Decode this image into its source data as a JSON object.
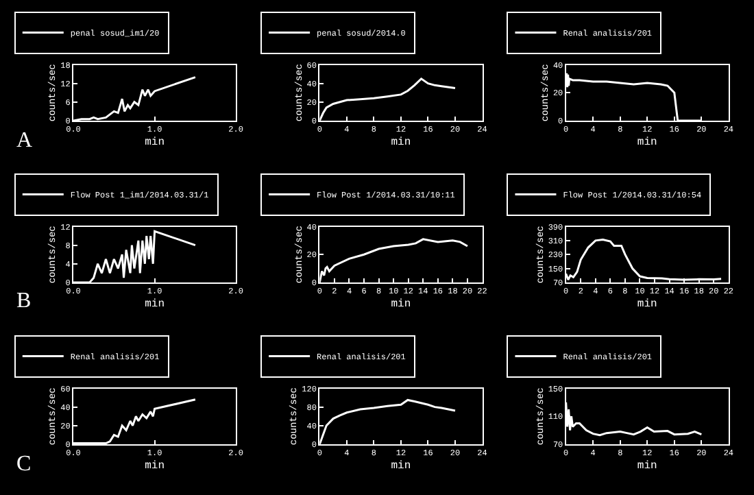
{
  "chart_data": [
    {
      "type": "line",
      "xlabel": "min",
      "ylabel": "counts/sec",
      "legend": "top",
      "grid": false,
      "annotations": [
        "A"
      ],
      "xlim": [
        0,
        2
      ],
      "xticks": [
        {
          "value": 0,
          "label": "0.0"
        },
        {
          "value": 1,
          "label": "1.0"
        },
        {
          "value": 2,
          "label": "2.0"
        }
      ],
      "ylim": [
        0,
        18
      ],
      "yticks": [
        0,
        6,
        12,
        18
      ],
      "x": [
        0,
        0.1,
        0.2,
        0.25,
        0.3,
        0.4,
        0.45,
        0.5,
        0.55,
        0.6,
        0.63,
        0.67,
        0.7,
        0.75,
        0.8,
        0.85,
        0.88,
        0.92,
        0.95,
        1.0,
        1.5
      ],
      "series": [
        {
          "name": "penal sosud_im1/20",
          "color": "#ffffff",
          "values": [
            0,
            0.5,
            0.5,
            1,
            0.5,
            1,
            2,
            3,
            2.5,
            7,
            3,
            5,
            4,
            6,
            5,
            10,
            8,
            10,
            8,
            9.5,
            14
          ]
        }
      ]
    },
    {
      "type": "line",
      "xlabel": "min",
      "ylabel": "counts/sec",
      "legend": "top",
      "grid": false,
      "xlim": [
        0,
        24
      ],
      "xticks": [
        0,
        4,
        8,
        12,
        16,
        20,
        24
      ],
      "ylim": [
        0,
        60
      ],
      "yticks": [
        0,
        20,
        40,
        60
      ],
      "x": [
        0,
        0.5,
        1,
        2,
        3,
        4,
        6,
        8,
        10,
        12,
        13,
        14,
        15,
        16,
        17,
        18,
        20
      ],
      "series": [
        {
          "name": "penal sosud/2014.0",
          "color": "#ffffff",
          "values": [
            0,
            8,
            14,
            18,
            20,
            22,
            23,
            24,
            26,
            28,
            32,
            38,
            45,
            40,
            38,
            37,
            35
          ]
        }
      ]
    },
    {
      "type": "line",
      "xlabel": "min",
      "ylabel": "counts/sec",
      "legend": "top",
      "grid": false,
      "xlim": [
        0,
        24
      ],
      "xticks": [
        0,
        4,
        8,
        12,
        16,
        20,
        24
      ],
      "ylim": [
        0,
        40
      ],
      "yticks": [
        0,
        20,
        40
      ],
      "x": [
        0,
        0.1,
        0.2,
        0.3,
        0.4,
        0.5,
        1,
        2,
        4,
        6,
        8,
        10,
        12,
        14,
        15,
        16,
        16.5,
        17,
        18,
        20
      ],
      "series": [
        {
          "name": "Renal analisis/201",
          "color": "#ffffff",
          "values": [
            26,
            34,
            24,
            33,
            25,
            30,
            29,
            29,
            28,
            28,
            27,
            26,
            27,
            26,
            25,
            20,
            0,
            0,
            0,
            0
          ]
        }
      ]
    },
    {
      "type": "line",
      "xlabel": "min",
      "ylabel": "counts/sec",
      "legend": "top",
      "grid": false,
      "annotations": [
        "B"
      ],
      "xlim": [
        0,
        2
      ],
      "xticks": [
        {
          "value": 0,
          "label": "0.0"
        },
        {
          "value": 1,
          "label": "1.0"
        },
        {
          "value": 2,
          "label": "2.0"
        }
      ],
      "ylim": [
        0,
        12
      ],
      "yticks": [
        0,
        4,
        8,
        12
      ],
      "x": [
        0,
        0.2,
        0.25,
        0.3,
        0.35,
        0.4,
        0.45,
        0.5,
        0.55,
        0.6,
        0.62,
        0.65,
        0.7,
        0.72,
        0.75,
        0.8,
        0.82,
        0.85,
        0.88,
        0.9,
        0.93,
        0.95,
        0.98,
        1.0,
        1.5
      ],
      "series": [
        {
          "name": "Flow Post 1_im1/2014.03.31/1",
          "color": "#ffffff",
          "values": [
            0,
            0,
            1,
            4,
            2,
            5,
            2,
            5,
            3,
            6,
            1,
            7,
            2,
            8,
            3,
            9,
            2,
            9,
            4,
            10,
            5,
            10,
            4,
            11,
            8
          ]
        }
      ]
    },
    {
      "type": "line",
      "xlabel": "min",
      "ylabel": "counts/sec",
      "legend": "top",
      "grid": false,
      "xlim": [
        0,
        22
      ],
      "xticks": [
        0,
        2,
        4,
        6,
        8,
        10,
        12,
        14,
        16,
        18,
        20,
        22
      ],
      "ylim": [
        0,
        40
      ],
      "yticks": [
        0,
        20,
        40
      ],
      "x": [
        0,
        0.3,
        0.6,
        0.8,
        1,
        1.3,
        2,
        4,
        6,
        8,
        10,
        12,
        13,
        14,
        16,
        18,
        19,
        20
      ],
      "series": [
        {
          "name": "Flow Post 1/2014.03.31/10:11",
          "color": "#ffffff",
          "values": [
            0,
            8,
            5,
            10,
            11,
            8,
            12,
            17,
            20,
            24,
            26,
            27,
            28,
            31,
            29,
            30,
            29,
            26
          ]
        }
      ]
    },
    {
      "type": "line",
      "xlabel": "min",
      "ylabel": "counts/sec",
      "legend": "top",
      "grid": false,
      "xlim": [
        0,
        22
      ],
      "xticks": [
        0,
        2,
        4,
        6,
        8,
        10,
        12,
        14,
        16,
        18,
        20,
        22
      ],
      "ylim": [
        70,
        390
      ],
      "yticks": [
        70,
        150,
        230,
        310,
        390
      ],
      "x": [
        0,
        0.3,
        0.6,
        1,
        1.5,
        2,
        3,
        4,
        5,
        6,
        6.5,
        7.5,
        8,
        9,
        10,
        11,
        13,
        14,
        16,
        18,
        20,
        21
      ],
      "series": [
        {
          "name": "Flow Post 1/2014.03.31/10:54",
          "color": "#ffffff",
          "values": [
            120,
            85,
            110,
            100,
            130,
            200,
            270,
            310,
            315,
            305,
            280,
            280,
            230,
            150,
            105,
            95,
            93,
            88,
            85,
            88,
            87,
            90
          ]
        }
      ]
    },
    {
      "type": "line",
      "xlabel": "min",
      "ylabel": "counts/sec",
      "legend": "top",
      "grid": false,
      "annotations": [
        "C"
      ],
      "xlim": [
        0,
        2
      ],
      "xticks": [
        {
          "value": 0,
          "label": "0.0"
        },
        {
          "value": 1,
          "label": "1.0"
        },
        {
          "value": 2,
          "label": "2.0"
        }
      ],
      "ylim": [
        0,
        60
      ],
      "yticks": [
        0,
        20,
        40,
        60
      ],
      "x": [
        0,
        0.4,
        0.45,
        0.5,
        0.55,
        0.6,
        0.65,
        0.7,
        0.73,
        0.77,
        0.8,
        0.85,
        0.9,
        0.95,
        0.98,
        1.0,
        1.5
      ],
      "series": [
        {
          "name": "Renal analisis/201",
          "color": "#ffffff",
          "values": [
            1,
            1,
            3,
            10,
            8,
            20,
            15,
            25,
            20,
            30,
            25,
            32,
            28,
            35,
            30,
            38,
            48
          ]
        }
      ]
    },
    {
      "type": "line",
      "xlabel": "min",
      "ylabel": "counts/sec",
      "legend": "top",
      "grid": false,
      "xlim": [
        0,
        24
      ],
      "xticks": [
        0,
        4,
        8,
        12,
        16,
        20,
        24
      ],
      "ylim": [
        0,
        120
      ],
      "yticks": [
        0,
        40,
        80,
        120
      ],
      "x": [
        0,
        0.5,
        1,
        2,
        3,
        4,
        6,
        8,
        10,
        12,
        13,
        14,
        16,
        17,
        18,
        20
      ],
      "series": [
        {
          "name": "Renal analisis/201",
          "color": "#ffffff",
          "values": [
            0,
            20,
            40,
            55,
            62,
            68,
            75,
            78,
            82,
            85,
            95,
            92,
            85,
            80,
            78,
            72
          ]
        }
      ]
    },
    {
      "type": "line",
      "xlabel": "min",
      "ylabel": "counts/sec",
      "legend": "top",
      "grid": false,
      "xlim": [
        0,
        24
      ],
      "xticks": [
        0,
        4,
        8,
        12,
        16,
        20,
        24
      ],
      "ylim": [
        70,
        150
      ],
      "yticks": [
        70,
        110,
        150
      ],
      "x": [
        0,
        0.2,
        0.4,
        0.6,
        0.8,
        1,
        1.5,
        2,
        3,
        4,
        5,
        6,
        8,
        9,
        10,
        11,
        12,
        13,
        15,
        16,
        18,
        19,
        20
      ],
      "series": [
        {
          "name": "Renal analisis/201",
          "color": "#ffffff",
          "values": [
            130,
            95,
            120,
            90,
            110,
            95,
            100,
            100,
            90,
            85,
            83,
            86,
            88,
            86,
            84,
            88,
            94,
            88,
            89,
            84,
            85,
            88,
            84
          ]
        }
      ]
    }
  ]
}
